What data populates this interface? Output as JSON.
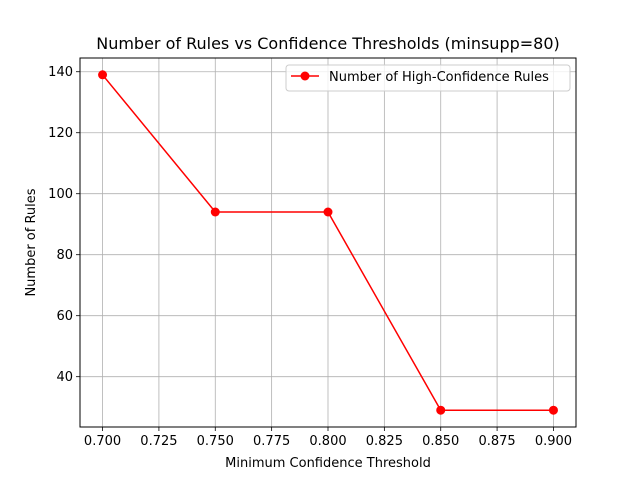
{
  "chart_data": {
    "type": "line",
    "title": "Number of Rules vs Confidence Thresholds (minsupp=80)",
    "xlabel": "Minimum Confidence Threshold",
    "ylabel": "Number of Rules",
    "x": [
      0.7,
      0.75,
      0.8,
      0.85,
      0.9
    ],
    "series": [
      {
        "name": "Number of High-Confidence Rules",
        "values": [
          139,
          94,
          94,
          29,
          29
        ],
        "color": "#ff0000"
      }
    ],
    "xlim": [
      0.69,
      0.91
    ],
    "ylim": [
      23.5,
      144.5
    ],
    "xticks": [
      "0.700",
      "0.725",
      "0.750",
      "0.775",
      "0.800",
      "0.825",
      "0.850",
      "0.875",
      "0.900"
    ],
    "yticks": [
      "40",
      "60",
      "80",
      "100",
      "120",
      "140"
    ],
    "grid": true,
    "legend_position": "top-right"
  }
}
